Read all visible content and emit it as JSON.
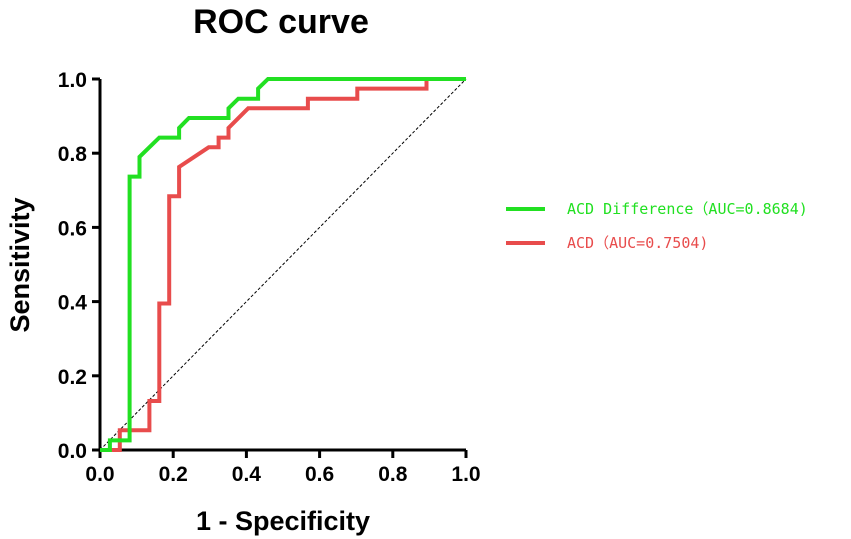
{
  "chart_data": {
    "type": "line",
    "title": "ROC curve",
    "xlabel": "1 - Specificity",
    "ylabel": "Sensitivity",
    "xlim": [
      0,
      1
    ],
    "ylim": [
      0,
      1
    ],
    "xticks": [
      "0.0",
      "0.2",
      "0.4",
      "0.6",
      "0.8",
      "1.0"
    ],
    "yticks": [
      "0.0",
      "0.2",
      "0.4",
      "0.6",
      "0.8",
      "1.0"
    ],
    "grid": false,
    "legend_position": "right",
    "reference_line": {
      "style": "dashed",
      "color": "#000000",
      "from": [
        0,
        0
      ],
      "to": [
        1,
        1
      ]
    },
    "series": [
      {
        "name": "ACD Difference（AUC=0.8684)",
        "color": "#22e022",
        "points": [
          [
            0,
            0
          ],
          [
            0.027,
            0
          ],
          [
            0.027,
            0.026
          ],
          [
            0.081,
            0.026
          ],
          [
            0.081,
            0.737
          ],
          [
            0.108,
            0.737
          ],
          [
            0.108,
            0.79
          ],
          [
            0.162,
            0.842
          ],
          [
            0.216,
            0.842
          ],
          [
            0.216,
            0.868
          ],
          [
            0.243,
            0.895
          ],
          [
            0.351,
            0.895
          ],
          [
            0.351,
            0.921
          ],
          [
            0.378,
            0.947
          ],
          [
            0.432,
            0.947
          ],
          [
            0.432,
            0.974
          ],
          [
            0.459,
            1.0
          ],
          [
            1.0,
            1.0
          ]
        ]
      },
      {
        "name": "ACD（AUC=0.7504)",
        "color": "#e84c4c",
        "points": [
          [
            0,
            0
          ],
          [
            0.054,
            0
          ],
          [
            0.054,
            0.053
          ],
          [
            0.135,
            0.053
          ],
          [
            0.135,
            0.132
          ],
          [
            0.162,
            0.132
          ],
          [
            0.162,
            0.395
          ],
          [
            0.189,
            0.395
          ],
          [
            0.189,
            0.684
          ],
          [
            0.216,
            0.684
          ],
          [
            0.216,
            0.763
          ],
          [
            0.297,
            0.816
          ],
          [
            0.324,
            0.816
          ],
          [
            0.324,
            0.842
          ],
          [
            0.351,
            0.842
          ],
          [
            0.351,
            0.868
          ],
          [
            0.405,
            0.921
          ],
          [
            0.568,
            0.921
          ],
          [
            0.568,
            0.947
          ],
          [
            0.703,
            0.947
          ],
          [
            0.703,
            0.974
          ],
          [
            0.892,
            0.974
          ],
          [
            0.892,
            1.0
          ],
          [
            1.0,
            1.0
          ]
        ]
      }
    ]
  }
}
